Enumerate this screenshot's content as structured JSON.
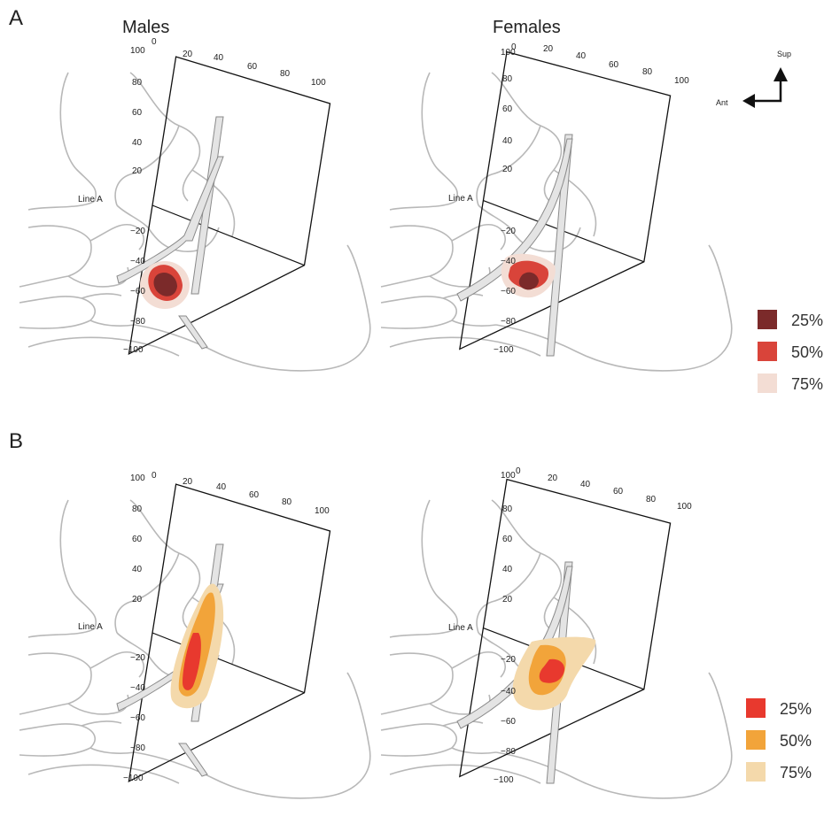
{
  "panels": {
    "a": {
      "letter": "A"
    },
    "b": {
      "letter": "B"
    }
  },
  "columns": {
    "left": "Males",
    "right": "Females"
  },
  "axis": {
    "x_ticks": [
      "0",
      "20",
      "40",
      "60",
      "80",
      "100"
    ],
    "y_ticks": [
      "100",
      "80",
      "60",
      "40",
      "20",
      "−20",
      "−40",
      "−60",
      "−80",
      "−100"
    ],
    "line_label": "Line A"
  },
  "orientation": {
    "sup": "Sup",
    "ant": "Ant"
  },
  "legend_a": [
    {
      "label": "25%",
      "color": "#7b2a2a"
    },
    {
      "label": "50%",
      "color": "#d9443a"
    },
    {
      "label": "75%",
      "color": "#f3ddd4"
    }
  ],
  "legend_b": [
    {
      "label": "25%",
      "color": "#e8392e"
    },
    {
      "label": "50%",
      "color": "#f2a43a"
    },
    {
      "label": "75%",
      "color": "#f4d9ab"
    }
  ],
  "colors": {
    "frame": "#111111",
    "bone": "#b8b8b8",
    "vessel": "#e4e4e4"
  }
}
